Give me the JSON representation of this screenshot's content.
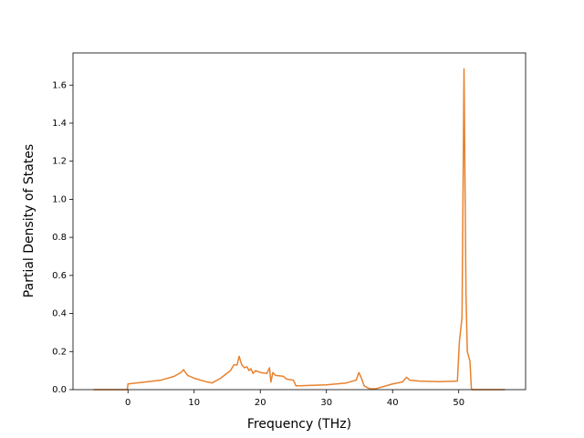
{
  "chart_data": {
    "type": "line",
    "xlabel": "Frequency (THz)",
    "ylabel": "Partial Density of States",
    "color": "#e8822e",
    "x": [
      -5.2,
      -0.1,
      0,
      2,
      5,
      7,
      8,
      8.4,
      9,
      10,
      12,
      12.7,
      14,
      15.5,
      16,
      16.5,
      16.8,
      17.2,
      17.6,
      18,
      18.3,
      18.6,
      18.9,
      19.3,
      20,
      21,
      21.4,
      21.6,
      21.9,
      22.3,
      23.5,
      24,
      25,
      25.4,
      30,
      33,
      34.5,
      34.9,
      35.3,
      35.7,
      36.5,
      37.5,
      40,
      41.5,
      42.1,
      42.6,
      44,
      47,
      49.8,
      50.1,
      50.5,
      50.8,
      51.1,
      51.3,
      51.7,
      51.9,
      52,
      57
    ],
    "values": [
      0,
      0,
      0.03,
      0.038,
      0.05,
      0.07,
      0.09,
      0.105,
      0.075,
      0.06,
      0.04,
      0.035,
      0.06,
      0.1,
      0.13,
      0.13,
      0.175,
      0.13,
      0.115,
      0.12,
      0.1,
      0.11,
      0.085,
      0.1,
      0.09,
      0.085,
      0.115,
      0.04,
      0.09,
      0.075,
      0.07,
      0.055,
      0.05,
      0.02,
      0.025,
      0.035,
      0.05,
      0.09,
      0.06,
      0.02,
      0.005,
      0.005,
      0.03,
      0.04,
      0.065,
      0.05,
      0.045,
      0.042,
      0.045,
      0.25,
      0.38,
      1.685,
      0.5,
      0.2,
      0.15,
      0.01,
      0,
      0
    ],
    "xlim": [
      -8.31,
      60.11
    ],
    "xticks": [
      0,
      10,
      20,
      30,
      40,
      50
    ],
    "ylim": [
      0,
      1.769
    ],
    "yticks": [
      {
        "value": 0,
        "label": "0.0"
      },
      0.2,
      0.4,
      0.6,
      0.8,
      {
        "value": 1,
        "label": "1.0"
      },
      1.2,
      1.4,
      1.6
    ]
  }
}
